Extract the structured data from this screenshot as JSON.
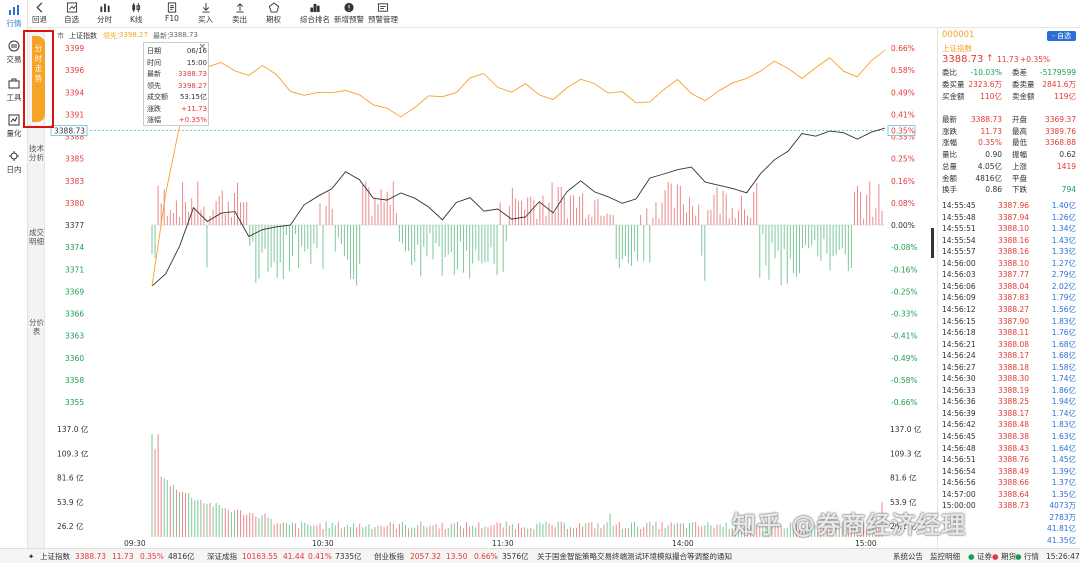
{
  "leftnav": [
    {
      "label": "行情"
    },
    {
      "label": "交易"
    },
    {
      "label": "工具"
    },
    {
      "label": "量化"
    },
    {
      "label": "日内"
    }
  ],
  "toolbar": [
    {
      "label": "回退",
      "icon": "back-icon"
    },
    {
      "label": "自选",
      "icon": "watchlist-icon"
    },
    {
      "label": "分时",
      "icon": "timeshare-icon"
    },
    {
      "label": "K线",
      "icon": "kline-icon"
    },
    {
      "label": "F10",
      "icon": "f10-icon"
    },
    {
      "label": "买入",
      "icon": "buy-icon"
    },
    {
      "label": "卖出",
      "icon": "sell-icon"
    },
    {
      "label": "期权",
      "icon": "option-icon"
    },
    {
      "label": "综合排名",
      "icon": "ranking-icon"
    },
    {
      "label": "新增预警",
      "icon": "alert-add-icon"
    },
    {
      "label": "预警管理",
      "icon": "alert-manage-icon"
    }
  ],
  "vtabs": {
    "active": "分时走势",
    "t2": "技术分析",
    "t3": "成交明细",
    "t4": "分价表"
  },
  "chart_header": {
    "market": "市",
    "name": "上证指数",
    "lead_label": "领先：",
    "lead_value": "3398.27",
    "latest_label": "最新：",
    "latest_value": "3388.73"
  },
  "price_axis": [
    "3399",
    "3396",
    "3394",
    "3391",
    "3388",
    "3385",
    "3383",
    "3380",
    "3377",
    "3374",
    "3371",
    "3369",
    "3366",
    "3363",
    "3360",
    "3358",
    "3355"
  ],
  "pct_axis": [
    "0.66%",
    "0.58%",
    "0.49%",
    "0.41%",
    "0.33%",
    "0.25%",
    "0.16%",
    "0.08%",
    "0.00%",
    "-0.08%",
    "-0.16%",
    "-0.25%",
    "-0.33%",
    "-0.41%",
    "-0.49%",
    "-0.58%",
    "-0.66%"
  ],
  "current_marker": {
    "price": "3388.73",
    "pct": "0.35%"
  },
  "vol_axis": [
    "137.0 亿",
    "109.3 亿",
    "81.6 亿",
    "53.9 亿",
    "26.2 亿"
  ],
  "time_axis": [
    "09:30",
    "10:30",
    "11:30",
    "14:00",
    "15:00"
  ],
  "tooltip": {
    "rows": [
      {
        "k": "日期",
        "v": "06/16"
      },
      {
        "k": "时间",
        "v": "15:00"
      },
      {
        "k": "最新",
        "v": "3388.73"
      },
      {
        "k": "领先",
        "v": "3398.27"
      },
      {
        "k": "成交额",
        "v": "53.15亿"
      },
      {
        "k": "涨跌",
        "v": "+11.73"
      },
      {
        "k": "涨幅",
        "v": "+0.35%"
      }
    ],
    "close": "×"
  },
  "right": {
    "code": "000001",
    "add_label": "- 自选",
    "name": "上证指数",
    "price": "3388.73",
    "arrow": "↑",
    "change": "11.73",
    "pct": "+0.35%",
    "stats1": [
      {
        "k1": "委比",
        "v1": "-10.03%",
        "k2": "委差",
        "v2": "-5179599"
      },
      {
        "k1": "委买量",
        "v1": "2323.6万",
        "k2": "委卖量",
        "v2": "2841.6万"
      },
      {
        "k1": "买金额",
        "v1": "110亿",
        "k2": "卖金额",
        "v2": "119亿"
      }
    ],
    "stats2": [
      {
        "k1": "最新",
        "v1": "3388.73",
        "k2": "开盘",
        "v2": "3369.37"
      },
      {
        "k1": "涨跌",
        "v1": "11.73",
        "k2": "最高",
        "v2": "3389.76"
      },
      {
        "k1": "涨幅",
        "v1": "0.35%",
        "k2": "最低",
        "v2": "3368.88"
      },
      {
        "k1": "量比",
        "v1": "0.90",
        "k2": "振幅",
        "v2": "0.62"
      },
      {
        "k1": "总量",
        "v1": "4.05亿",
        "k2": "上涨",
        "v2": "1419"
      },
      {
        "k1": "金额",
        "v1": "4816亿",
        "k2": "平盘",
        "v2": ""
      },
      {
        "k1": "换手",
        "v1": "0.86",
        "k2": "下跌",
        "v2": "794"
      }
    ],
    "ticks": [
      {
        "t": "14:55:45",
        "p": "3387.96",
        "v": "1.40亿"
      },
      {
        "t": "14:55:48",
        "p": "3387.94",
        "v": "1.26亿"
      },
      {
        "t": "14:55:51",
        "p": "3388.10",
        "v": "1.34亿"
      },
      {
        "t": "14:55:54",
        "p": "3388.16",
        "v": "1.43亿"
      },
      {
        "t": "14:55:57",
        "p": "3388.16",
        "v": "1.33亿"
      },
      {
        "t": "14:56:00",
        "p": "3388.10",
        "v": "1.27亿"
      },
      {
        "t": "14:56:03",
        "p": "3387.77",
        "v": "2.79亿"
      },
      {
        "t": "14:56:06",
        "p": "3388.04",
        "v": "2.02亿"
      },
      {
        "t": "14:56:09",
        "p": "3387.83",
        "v": "1.79亿"
      },
      {
        "t": "14:56:12",
        "p": "3388.27",
        "v": "1.56亿"
      },
      {
        "t": "14:56:15",
        "p": "3387.90",
        "v": "1.83亿"
      },
      {
        "t": "14:56:18",
        "p": "3388.11",
        "v": "1.76亿"
      },
      {
        "t": "14:56:21",
        "p": "3388.08",
        "v": "1.68亿"
      },
      {
        "t": "14:56:24",
        "p": "3388.17",
        "v": "1.68亿"
      },
      {
        "t": "14:56:27",
        "p": "3388.18",
        "v": "1.58亿"
      },
      {
        "t": "14:56:30",
        "p": "3388.30",
        "v": "1.74亿"
      },
      {
        "t": "14:56:33",
        "p": "3388.19",
        "v": "1.86亿"
      },
      {
        "t": "14:56:36",
        "p": "3388.25",
        "v": "1.94亿"
      },
      {
        "t": "14:56:39",
        "p": "3388.17",
        "v": "1.74亿"
      },
      {
        "t": "14:56:42",
        "p": "3388.48",
        "v": "1.83亿"
      },
      {
        "t": "14:56:45",
        "p": "3388.38",
        "v": "1.63亿"
      },
      {
        "t": "14:56:48",
        "p": "3388.43",
        "v": "1.64亿"
      },
      {
        "t": "14:56:51",
        "p": "3388.76",
        "v": "1.45亿"
      },
      {
        "t": "14:56:54",
        "p": "3388.49",
        "v": "1.39亿"
      },
      {
        "t": "14:56:56",
        "p": "3388.66",
        "v": "1.37亿"
      },
      {
        "t": "14:57:00",
        "p": "3388.64",
        "v": "1.35亿"
      },
      {
        "t": "15:00:00",
        "p": "3388.73",
        "v": "4073万"
      },
      {
        "t": "",
        "p": "",
        "v": "2783万"
      },
      {
        "t": "",
        "p": "",
        "v": "41.81亿"
      },
      {
        "t": "",
        "p": "",
        "v": "41.35亿"
      }
    ]
  },
  "bottom": {
    "i1_name": "上证指数",
    "i1_price": "3388.73",
    "i1_chg": "11.73",
    "i1_pct": "0.35%",
    "i1_amt": "4816亿",
    "i2_name": "深证成指",
    "i2_price": "10163.55",
    "i2_chg": "41.44",
    "i2_pct": "0.41%",
    "i2_amt": "7335亿",
    "i3_name": "创业板指",
    "i3_price": "2057.32",
    "i3_chg": "13.50",
    "i3_pct": "0.66%",
    "i3_amt": "3576亿",
    "news": "关于国金智能策略交易终端测试环境模拟撮合等调整的通知",
    "sys": "系统公告",
    "monitor": "监控明细",
    "l1": "证券",
    "l2": "期货",
    "l3": "行情",
    "time": "15:26:47"
  },
  "watermark": "知乎 @券商经济经理",
  "chart_data": {
    "type": "line",
    "x_range": [
      "09:30",
      "15:00"
    ],
    "price_ylim": [
      3355,
      3399
    ],
    "pct_ylim": [
      -0.66,
      0.66
    ],
    "prev_close": 3377,
    "series": [
      {
        "color": "#333333",
        "values": [
          3369.4,
          3370.5,
          3375.0,
          3378.8,
          3377.3,
          3379.0,
          3378.1,
          3375.8,
          3376.7,
          3376.2,
          3377.5,
          3379.4,
          3380.2,
          3382.1,
          3383.2,
          3382.6,
          3380.8,
          3379.5,
          3381.3,
          3380.5,
          3378.7,
          3378.2,
          3379.6,
          3380.1,
          3379.3,
          3378.5,
          3377.8,
          3378.4,
          3379.3,
          3378.9,
          3381.2,
          3382.0,
          3381.7,
          3380.2,
          3379.5,
          3380.8,
          3382.3,
          3383.5,
          3384.2,
          3383.6,
          3382.8,
          3381.9,
          3381.1,
          3381.6,
          3383.0,
          3385.0,
          3386.7,
          3387.8,
          3388.3,
          3388.9,
          3387.9,
          3388.2,
          3388.4,
          3388.7
        ]
      },
      {
        "color": "#f7a325",
        "values": [
          3369.4,
          3380.5,
          3389.5,
          3393.8,
          3396.4,
          3396.8,
          3396.5,
          3395.9,
          3396.4,
          3395.5,
          3394.1,
          3393.2,
          3393.0,
          3393.5,
          3394.2,
          3393.0,
          3391.5,
          3391.8,
          3390.8,
          3391.2,
          3392.8,
          3393.4,
          3393.6,
          3394.8,
          3395.8,
          3394.6,
          3393.4,
          3394.1,
          3393.4,
          3393.0,
          3393.7,
          3394.8,
          3395.0,
          3393.6,
          3393.1,
          3392.1,
          3392.8,
          3393.8,
          3394.6,
          3393.5,
          3392.9,
          3393.4,
          3394.3,
          3395.6,
          3396.4,
          3396.9,
          3396.3,
          3395.7,
          3396.6,
          3397.3,
          3396.2,
          3395.9,
          3397.2,
          3398.3
        ]
      }
    ],
    "volume_max": 137.0,
    "volume_bar_count": 240
  }
}
